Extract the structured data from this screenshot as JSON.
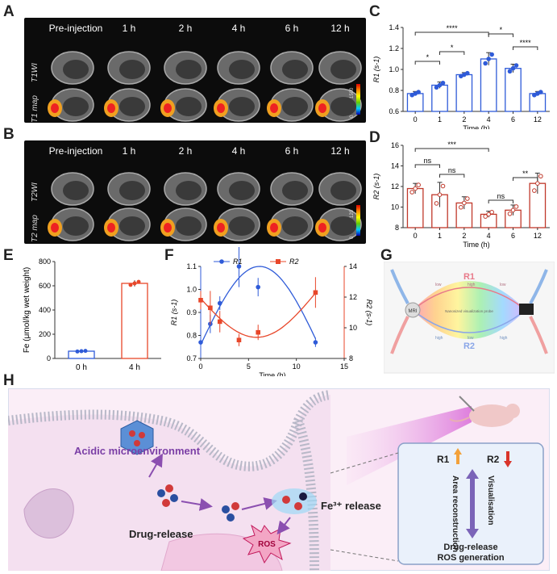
{
  "panels": {
    "A": "A",
    "B": "B",
    "C": "C",
    "D": "D",
    "E": "E",
    "F": "F",
    "G": "G",
    "H": "H"
  },
  "panel_a": {
    "headers": [
      "Pre-injection",
      "1 h",
      "2 h",
      "4 h",
      "6 h",
      "12 h"
    ],
    "row1": "T1WI",
    "row2": "T1 map",
    "cbar_max": "1500",
    "cbar_min": "0",
    "cbar_unit": "ms",
    "cbar_label": "T1"
  },
  "panel_b": {
    "headers": [
      "Pre-injection",
      "1 h",
      "2 h",
      "4 h",
      "6 h",
      "12 h"
    ],
    "row1": "T2WI",
    "row2": "T2 map",
    "cbar_max": "120",
    "cbar_min": "0",
    "cbar_unit": "ms",
    "cbar_label": "T2"
  },
  "chart_data": [
    {
      "panel": "C",
      "type": "bar",
      "categories": [
        "0",
        "1",
        "2",
        "4",
        "6",
        "12"
      ],
      "values": [
        0.77,
        0.85,
        0.95,
        1.1,
        1.01,
        0.77
      ],
      "errors": [
        0.02,
        0.03,
        0.02,
        0.06,
        0.04,
        0.02
      ],
      "xlabel": "Time (h)",
      "ylabel": "R1 (s-1)",
      "ylim": [
        0.6,
        1.4
      ],
      "yticks": [
        0.6,
        0.8,
        1.0,
        1.2,
        1.4
      ],
      "significance": [
        {
          "from": "0",
          "to": "1",
          "label": "*"
        },
        {
          "from": "1",
          "to": "2",
          "label": "*"
        },
        {
          "from": "0",
          "to": "4",
          "label": "****"
        },
        {
          "from": "4",
          "to": "6",
          "label": "*"
        },
        {
          "from": "6",
          "to": "12",
          "label": "****"
        }
      ]
    },
    {
      "panel": "D",
      "type": "bar",
      "categories": [
        "0",
        "1",
        "2",
        "4",
        "6",
        "12"
      ],
      "values": [
        11.8,
        11.2,
        10.4,
        9.3,
        9.7,
        12.3
      ],
      "errors": [
        0.5,
        1.2,
        0.6,
        0.3,
        0.5,
        1.0
      ],
      "xlabel": "Time (h)",
      "ylabel": "R2 (s-1)",
      "ylim": [
        8,
        16
      ],
      "yticks": [
        8,
        10,
        12,
        14,
        16
      ],
      "significance": [
        {
          "from": "0",
          "to": "1",
          "label": "ns"
        },
        {
          "from": "1",
          "to": "2",
          "label": "ns"
        },
        {
          "from": "0",
          "to": "4",
          "label": "***"
        },
        {
          "from": "4",
          "to": "6",
          "label": "ns"
        },
        {
          "from": "6",
          "to": "12",
          "label": "**"
        }
      ]
    },
    {
      "panel": "E",
      "type": "bar",
      "categories": [
        "0 h",
        "4 h"
      ],
      "values": [
        60,
        620
      ],
      "errors": [
        5,
        25
      ],
      "ylabel": "Fe (μmol/kg wet weight)",
      "ylim": [
        0,
        800
      ],
      "yticks": [
        0,
        200,
        400,
        600,
        800
      ]
    },
    {
      "panel": "F",
      "type": "line",
      "xlabel": "Time (h)",
      "xlim": [
        0,
        15
      ],
      "xticks": [
        0,
        5,
        10,
        15
      ],
      "series": [
        {
          "name": "R1",
          "axis": "left",
          "color": "#2f5bd8",
          "x": [
            0,
            1,
            2,
            4,
            6,
            12
          ],
          "y": [
            0.77,
            0.85,
            0.94,
            1.1,
            1.01,
            0.77
          ],
          "err": [
            0.02,
            0.04,
            0.03,
            0.09,
            0.04,
            0.02
          ]
        },
        {
          "name": "R2",
          "axis": "right",
          "color": "#e8472a",
          "x": [
            0,
            1,
            2,
            4,
            6,
            12
          ],
          "y": [
            11.8,
            11.3,
            10.4,
            9.2,
            9.7,
            12.3
          ],
          "err": [
            0.6,
            1.1,
            0.7,
            0.4,
            0.5,
            1.0
          ]
        }
      ],
      "ylabel_left": "R1 (s-1)",
      "ylim_left": [
        0.7,
        1.1
      ],
      "yticks_left": [
        0.7,
        0.8,
        0.9,
        1.0,
        1.1
      ],
      "ylabel_right": "R2 (s-1)",
      "ylim_right": [
        8,
        14
      ],
      "yticks_right": [
        8,
        10,
        12,
        14
      ]
    }
  ],
  "panel_g": {
    "r1": "R1",
    "r2": "R2",
    "mri": "MRI",
    "high": "high",
    "low": "low",
    "center": "Nanosized visualization probe"
  },
  "panel_h": {
    "acidic": "Acidic microenvironment",
    "drug_release": "Drug-release",
    "fe_release": "Fe³⁺ release",
    "ros": "ROS",
    "box_r1": "R1",
    "box_r2": "R2",
    "area": "Area reconstruction",
    "visual": "Visualisation",
    "bottom1": "Drug-release",
    "bottom2": "ROS generation"
  },
  "colors": {
    "blue": "#2f5bd8",
    "red": "#e8472a",
    "membrane": "#b9b9c9",
    "pink": "#f2d8ee"
  }
}
